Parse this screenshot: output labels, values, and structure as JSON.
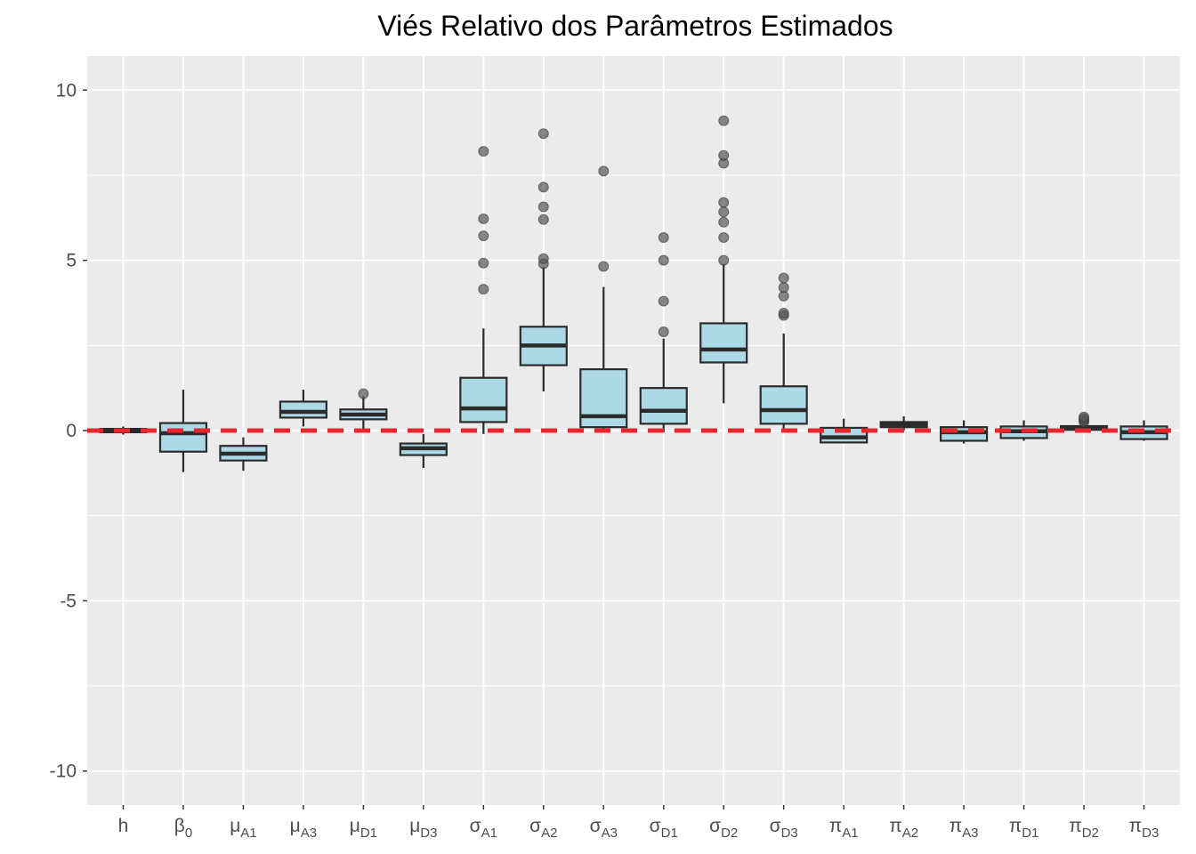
{
  "chart_data": {
    "type": "boxplot",
    "title": "Viés Relativo dos Parâmetros Estimados",
    "xlabel": "",
    "ylabel": "",
    "ylim": [
      -11,
      11
    ],
    "yticks": [
      -10,
      -5,
      0,
      5,
      10
    ],
    "ytick_labels": [
      "-10",
      "-5",
      "0",
      "5",
      "10"
    ],
    "grid": true,
    "reference_line": {
      "y": 0,
      "style": "dashed",
      "color": "#e8262b"
    },
    "colors": {
      "box_fill": "#add8e6",
      "box_stroke": "#2b2b2b",
      "outlier": "#555555",
      "panel": "#ebebeb",
      "grid": "#ffffff"
    },
    "categories": [
      {
        "label": "h",
        "sub": "",
        "q1": -0.05,
        "median": 0.0,
        "q3": 0.05,
        "whisker_low": -0.12,
        "whisker_high": 0.12,
        "outliers": []
      },
      {
        "label": "β",
        "sub": "0",
        "q1": -0.62,
        "median": -0.08,
        "q3": 0.22,
        "whisker_low": -1.22,
        "whisker_high": 1.2,
        "outliers": []
      },
      {
        "label": "μ",
        "sub": "A1",
        "q1": -0.88,
        "median": -0.68,
        "q3": -0.45,
        "whisker_low": -1.18,
        "whisker_high": -0.2,
        "outliers": []
      },
      {
        "label": "μ",
        "sub": "A3",
        "q1": 0.38,
        "median": 0.55,
        "q3": 0.85,
        "whisker_low": 0.12,
        "whisker_high": 1.2,
        "outliers": []
      },
      {
        "label": "μ",
        "sub": "D1",
        "q1": 0.33,
        "median": 0.47,
        "q3": 0.62,
        "whisker_low": 0.05,
        "whisker_high": 1.0,
        "outliers": [
          1.08
        ]
      },
      {
        "label": "μ",
        "sub": "D3",
        "q1": -0.72,
        "median": -0.52,
        "q3": -0.38,
        "whisker_low": -1.1,
        "whisker_high": -0.1,
        "outliers": []
      },
      {
        "label": "σ",
        "sub": "A1",
        "q1": 0.25,
        "median": 0.65,
        "q3": 1.55,
        "whisker_low": -0.1,
        "whisker_high": 3.0,
        "outliers": [
          4.15,
          4.92,
          5.72,
          6.22,
          8.2
        ]
      },
      {
        "label": "σ",
        "sub": "A2",
        "q1": 1.92,
        "median": 2.5,
        "q3": 3.05,
        "whisker_low": 1.15,
        "whisker_high": 4.8,
        "outliers": [
          4.9,
          5.05,
          6.2,
          6.57,
          7.15,
          8.72
        ]
      },
      {
        "label": "σ",
        "sub": "A3",
        "q1": 0.1,
        "median": 0.42,
        "q3": 1.8,
        "whisker_low": -0.05,
        "whisker_high": 4.22,
        "outliers": [
          4.82,
          7.62
        ]
      },
      {
        "label": "σ",
        "sub": "D1",
        "q1": 0.2,
        "median": 0.58,
        "q3": 1.25,
        "whisker_low": -0.05,
        "whisker_high": 2.7,
        "outliers": [
          2.9,
          3.8,
          5.0,
          5.67
        ]
      },
      {
        "label": "σ",
        "sub": "D2",
        "q1": 2.0,
        "median": 2.38,
        "q3": 3.15,
        "whisker_low": 0.8,
        "whisker_high": 4.9,
        "outliers": [
          5.0,
          5.67,
          6.12,
          6.42,
          6.7,
          7.85,
          8.08,
          9.1
        ]
      },
      {
        "label": "σ",
        "sub": "D3",
        "q1": 0.2,
        "median": 0.6,
        "q3": 1.3,
        "whisker_low": -0.05,
        "whisker_high": 2.85,
        "outliers": [
          3.38,
          3.45,
          3.95,
          4.2,
          4.48
        ]
      },
      {
        "label": "π",
        "sub": "A1",
        "q1": -0.35,
        "median": -0.2,
        "q3": 0.08,
        "whisker_low": -0.38,
        "whisker_high": 0.35,
        "outliers": []
      },
      {
        "label": "π",
        "sub": "A2",
        "q1": 0.1,
        "median": 0.18,
        "q3": 0.25,
        "whisker_low": 0.0,
        "whisker_high": 0.42,
        "outliers": []
      },
      {
        "label": "π",
        "sub": "A3",
        "q1": -0.3,
        "median": -0.05,
        "q3": 0.1,
        "whisker_low": -0.38,
        "whisker_high": 0.3,
        "outliers": []
      },
      {
        "label": "π",
        "sub": "D1",
        "q1": -0.22,
        "median": -0.02,
        "q3": 0.12,
        "whisker_low": -0.3,
        "whisker_high": 0.3,
        "outliers": []
      },
      {
        "label": "π",
        "sub": "D2",
        "q1": 0.02,
        "median": 0.08,
        "q3": 0.13,
        "whisker_low": -0.02,
        "whisker_high": 0.2,
        "outliers": [
          0.25,
          0.3,
          0.35,
          0.4
        ]
      },
      {
        "label": "π",
        "sub": "D3",
        "q1": -0.25,
        "median": -0.05,
        "q3": 0.12,
        "whisker_low": -0.3,
        "whisker_high": 0.3,
        "outliers": []
      }
    ]
  }
}
